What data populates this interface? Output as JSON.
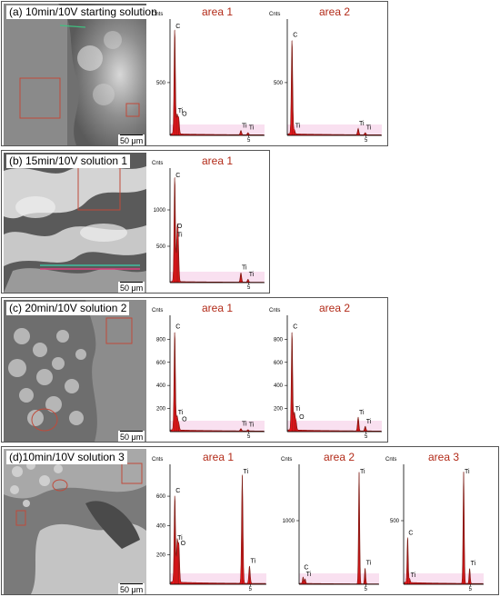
{
  "figure": {
    "panels": [
      {
        "label": "(a) 10min/10V starting solution",
        "scale_bar": "50  μm",
        "spectra": [
          {
            "title": "area 1",
            "y_axis": "Cnts",
            "y_ticks": [
              {
                "label": "500",
                "value": 500
              }
            ],
            "ymax": 1050,
            "x_tick": "5",
            "peaks": [
              {
                "el": "C",
                "x": 0.3,
                "h": 1000
              },
              {
                "el": "O",
                "x": 0.55,
                "h": 150
              },
              {
                "el": "Ti",
                "x": 0.45,
                "h": 180
              },
              {
                "el": "Ti",
                "x": 4.5,
                "h": 40
              },
              {
                "el": "Ti",
                "x": 4.95,
                "h": 20
              }
            ],
            "peak_labels": [
              {
                "text": "C",
                "x": 0.3,
                "h": 1000
              },
              {
                "text": "Ti",
                "x": 0.45,
                "h": 180
              },
              {
                "text": "O",
                "x": 0.7,
                "h": 150
              },
              {
                "text": "Ti",
                "x": 4.5,
                "h": 40
              },
              {
                "text": "Ti",
                "x": 4.95,
                "h": 20
              }
            ]
          },
          {
            "title": "area 2",
            "y_axis": "Cnts",
            "y_ticks": [
              {
                "label": "500",
                "value": 500
              }
            ],
            "ymax": 1050,
            "x_tick": "5",
            "peaks": [
              {
                "el": "C",
                "x": 0.3,
                "h": 900
              },
              {
                "el": "Ti",
                "x": 0.45,
                "h": 40
              },
              {
                "el": "Ti",
                "x": 4.5,
                "h": 60
              },
              {
                "el": "Ti",
                "x": 4.95,
                "h": 20
              }
            ],
            "peak_labels": [
              {
                "text": "C",
                "x": 0.3,
                "h": 900
              },
              {
                "text": "Ti",
                "x": 0.45,
                "h": 40
              },
              {
                "text": "Ti",
                "x": 4.5,
                "h": 60
              },
              {
                "text": "Ti",
                "x": 4.95,
                "h": 20
              }
            ]
          }
        ]
      },
      {
        "label": "(b) 15min/10V solution 1",
        "scale_bar": "50  μm",
        "spectra": [
          {
            "title": "area 1",
            "y_axis": "Cnts",
            "y_ticks": [
              {
                "label": "500",
                "value": 500
              },
              {
                "label": "1000",
                "value": 1000
              }
            ],
            "ymax": 1500,
            "x_tick": "5",
            "peaks": [
              {
                "el": "C",
                "x": 0.3,
                "h": 1450
              },
              {
                "el": "O",
                "x": 0.52,
                "h": 520
              },
              {
                "el": "Ti",
                "x": 0.45,
                "h": 600
              },
              {
                "el": "Ti",
                "x": 4.5,
                "h": 130
              },
              {
                "el": "Ti",
                "x": 4.95,
                "h": 40
              }
            ],
            "peak_labels": [
              {
                "text": "C",
                "x": 0.3,
                "h": 1450
              },
              {
                "text": "O",
                "x": 0.4,
                "h": 700
              },
              {
                "text": "Ti",
                "x": 0.4,
                "h": 580
              },
              {
                "text": "Ti",
                "x": 4.5,
                "h": 130
              },
              {
                "text": "Ti",
                "x": 4.95,
                "h": 40
              }
            ]
          }
        ]
      },
      {
        "label": "(c) 20min/10V solution 2",
        "scale_bar": "50  μm",
        "spectra": [
          {
            "title": "area 1",
            "y_axis": "Cnts",
            "y_ticks": [
              {
                "label": "200",
                "value": 200
              },
              {
                "label": "400",
                "value": 400
              },
              {
                "label": "600",
                "value": 600
              },
              {
                "label": "800",
                "value": 800
              }
            ],
            "ymax": 960,
            "x_tick": "5",
            "peaks": [
              {
                "el": "C",
                "x": 0.3,
                "h": 860
              },
              {
                "el": "Ti",
                "x": 0.45,
                "h": 120
              },
              {
                "el": "O",
                "x": 0.55,
                "h": 60
              },
              {
                "el": "Ti",
                "x": 4.5,
                "h": 20
              },
              {
                "el": "Ti",
                "x": 4.95,
                "h": 10
              }
            ],
            "peak_labels": [
              {
                "text": "C",
                "x": 0.3,
                "h": 860
              },
              {
                "text": "Ti",
                "x": 0.45,
                "h": 120
              },
              {
                "text": "O",
                "x": 0.7,
                "h": 60
              },
              {
                "text": "Ti",
                "x": 4.5,
                "h": 20
              },
              {
                "text": "Ti",
                "x": 4.95,
                "h": 10
              }
            ]
          },
          {
            "title": "area 2",
            "y_axis": "Cnts",
            "y_ticks": [
              {
                "label": "200",
                "value": 200
              },
              {
                "label": "400",
                "value": 400
              },
              {
                "label": "600",
                "value": 600
              },
              {
                "label": "800",
                "value": 800
              }
            ],
            "ymax": 960,
            "x_tick": "5",
            "peaks": [
              {
                "el": "C",
                "x": 0.3,
                "h": 860
              },
              {
                "el": "Ti",
                "x": 0.45,
                "h": 150
              },
              {
                "el": "O",
                "x": 0.55,
                "h": 80
              },
              {
                "el": "Ti",
                "x": 4.5,
                "h": 120
              },
              {
                "el": "Ti",
                "x": 4.95,
                "h": 40
              }
            ],
            "peak_labels": [
              {
                "text": "C",
                "x": 0.3,
                "h": 860
              },
              {
                "text": "Ti",
                "x": 0.45,
                "h": 150
              },
              {
                "text": "O",
                "x": 0.7,
                "h": 80
              },
              {
                "text": "Ti",
                "x": 4.5,
                "h": 120
              },
              {
                "text": "Ti",
                "x": 4.95,
                "h": 40
              }
            ]
          }
        ]
      },
      {
        "label": "(d)10min/10V solution 3",
        "scale_bar": "50  μm",
        "spectra": [
          {
            "title": "area 1",
            "y_axis": "Cnts",
            "y_ticks": [
              {
                "label": "200",
                "value": 200
              },
              {
                "label": "400",
                "value": 400
              },
              {
                "label": "600",
                "value": 600
              }
            ],
            "ymax": 780,
            "x_tick": "5",
            "peaks": [
              {
                "el": "C",
                "x": 0.3,
                "h": 600
              },
              {
                "el": "Ti",
                "x": 0.45,
                "h": 280
              },
              {
                "el": "O",
                "x": 0.55,
                "h": 250
              },
              {
                "el": "Ti",
                "x": 4.5,
                "h": 740
              },
              {
                "el": "Ti",
                "x": 4.95,
                "h": 120
              }
            ],
            "peak_labels": [
              {
                "text": "C",
                "x": 0.3,
                "h": 600
              },
              {
                "text": "Ti",
                "x": 0.4,
                "h": 280
              },
              {
                "text": "O",
                "x": 0.6,
                "h": 240
              },
              {
                "text": "Ti",
                "x": 4.5,
                "h": 740
              },
              {
                "text": "Ti",
                "x": 4.95,
                "h": 120
              }
            ]
          },
          {
            "title": "area 2",
            "y_axis": "Cnts",
            "y_ticks": [
              {
                "label": "1000",
                "value": 1000
              }
            ],
            "ymax": 1800,
            "x_tick": "5",
            "peaks": [
              {
                "el": "C",
                "x": 0.3,
                "h": 100
              },
              {
                "el": "Ti",
                "x": 0.45,
                "h": 70
              },
              {
                "el": "Ti",
                "x": 4.5,
                "h": 1760
              },
              {
                "el": "Ti",
                "x": 4.95,
                "h": 250
              }
            ],
            "peak_labels": [
              {
                "text": "C",
                "x": 0.3,
                "h": 180
              },
              {
                "text": "Ti",
                "x": 0.45,
                "h": 70
              },
              {
                "text": "Ti",
                "x": 4.5,
                "h": 1760
              },
              {
                "text": "Ti",
                "x": 4.95,
                "h": 250
              }
            ]
          },
          {
            "title": "area 3",
            "y_axis": "Cnts",
            "y_ticks": [
              {
                "label": "500",
                "value": 500
              }
            ],
            "ymax": 900,
            "x_tick": "5",
            "peaks": [
              {
                "el": "C",
                "x": 0.3,
                "h": 360
              },
              {
                "el": "Ti",
                "x": 0.45,
                "h": 30
              },
              {
                "el": "Ti",
                "x": 4.5,
                "h": 880
              },
              {
                "el": "Ti",
                "x": 4.95,
                "h": 120
              }
            ],
            "peak_labels": [
              {
                "text": "C",
                "x": 0.3,
                "h": 360
              },
              {
                "text": "Ti",
                "x": 0.45,
                "h": 30
              },
              {
                "text": "Ti",
                "x": 4.5,
                "h": 880
              },
              {
                "text": "Ti",
                "x": 4.95,
                "h": 120
              }
            ]
          }
        ]
      }
    ]
  },
  "colors": {
    "spectrum_fill": "#e8151b",
    "spectrum_line": "#7a1a12",
    "area_title": "#b22a18",
    "bg_band": "#f7d3ea"
  }
}
